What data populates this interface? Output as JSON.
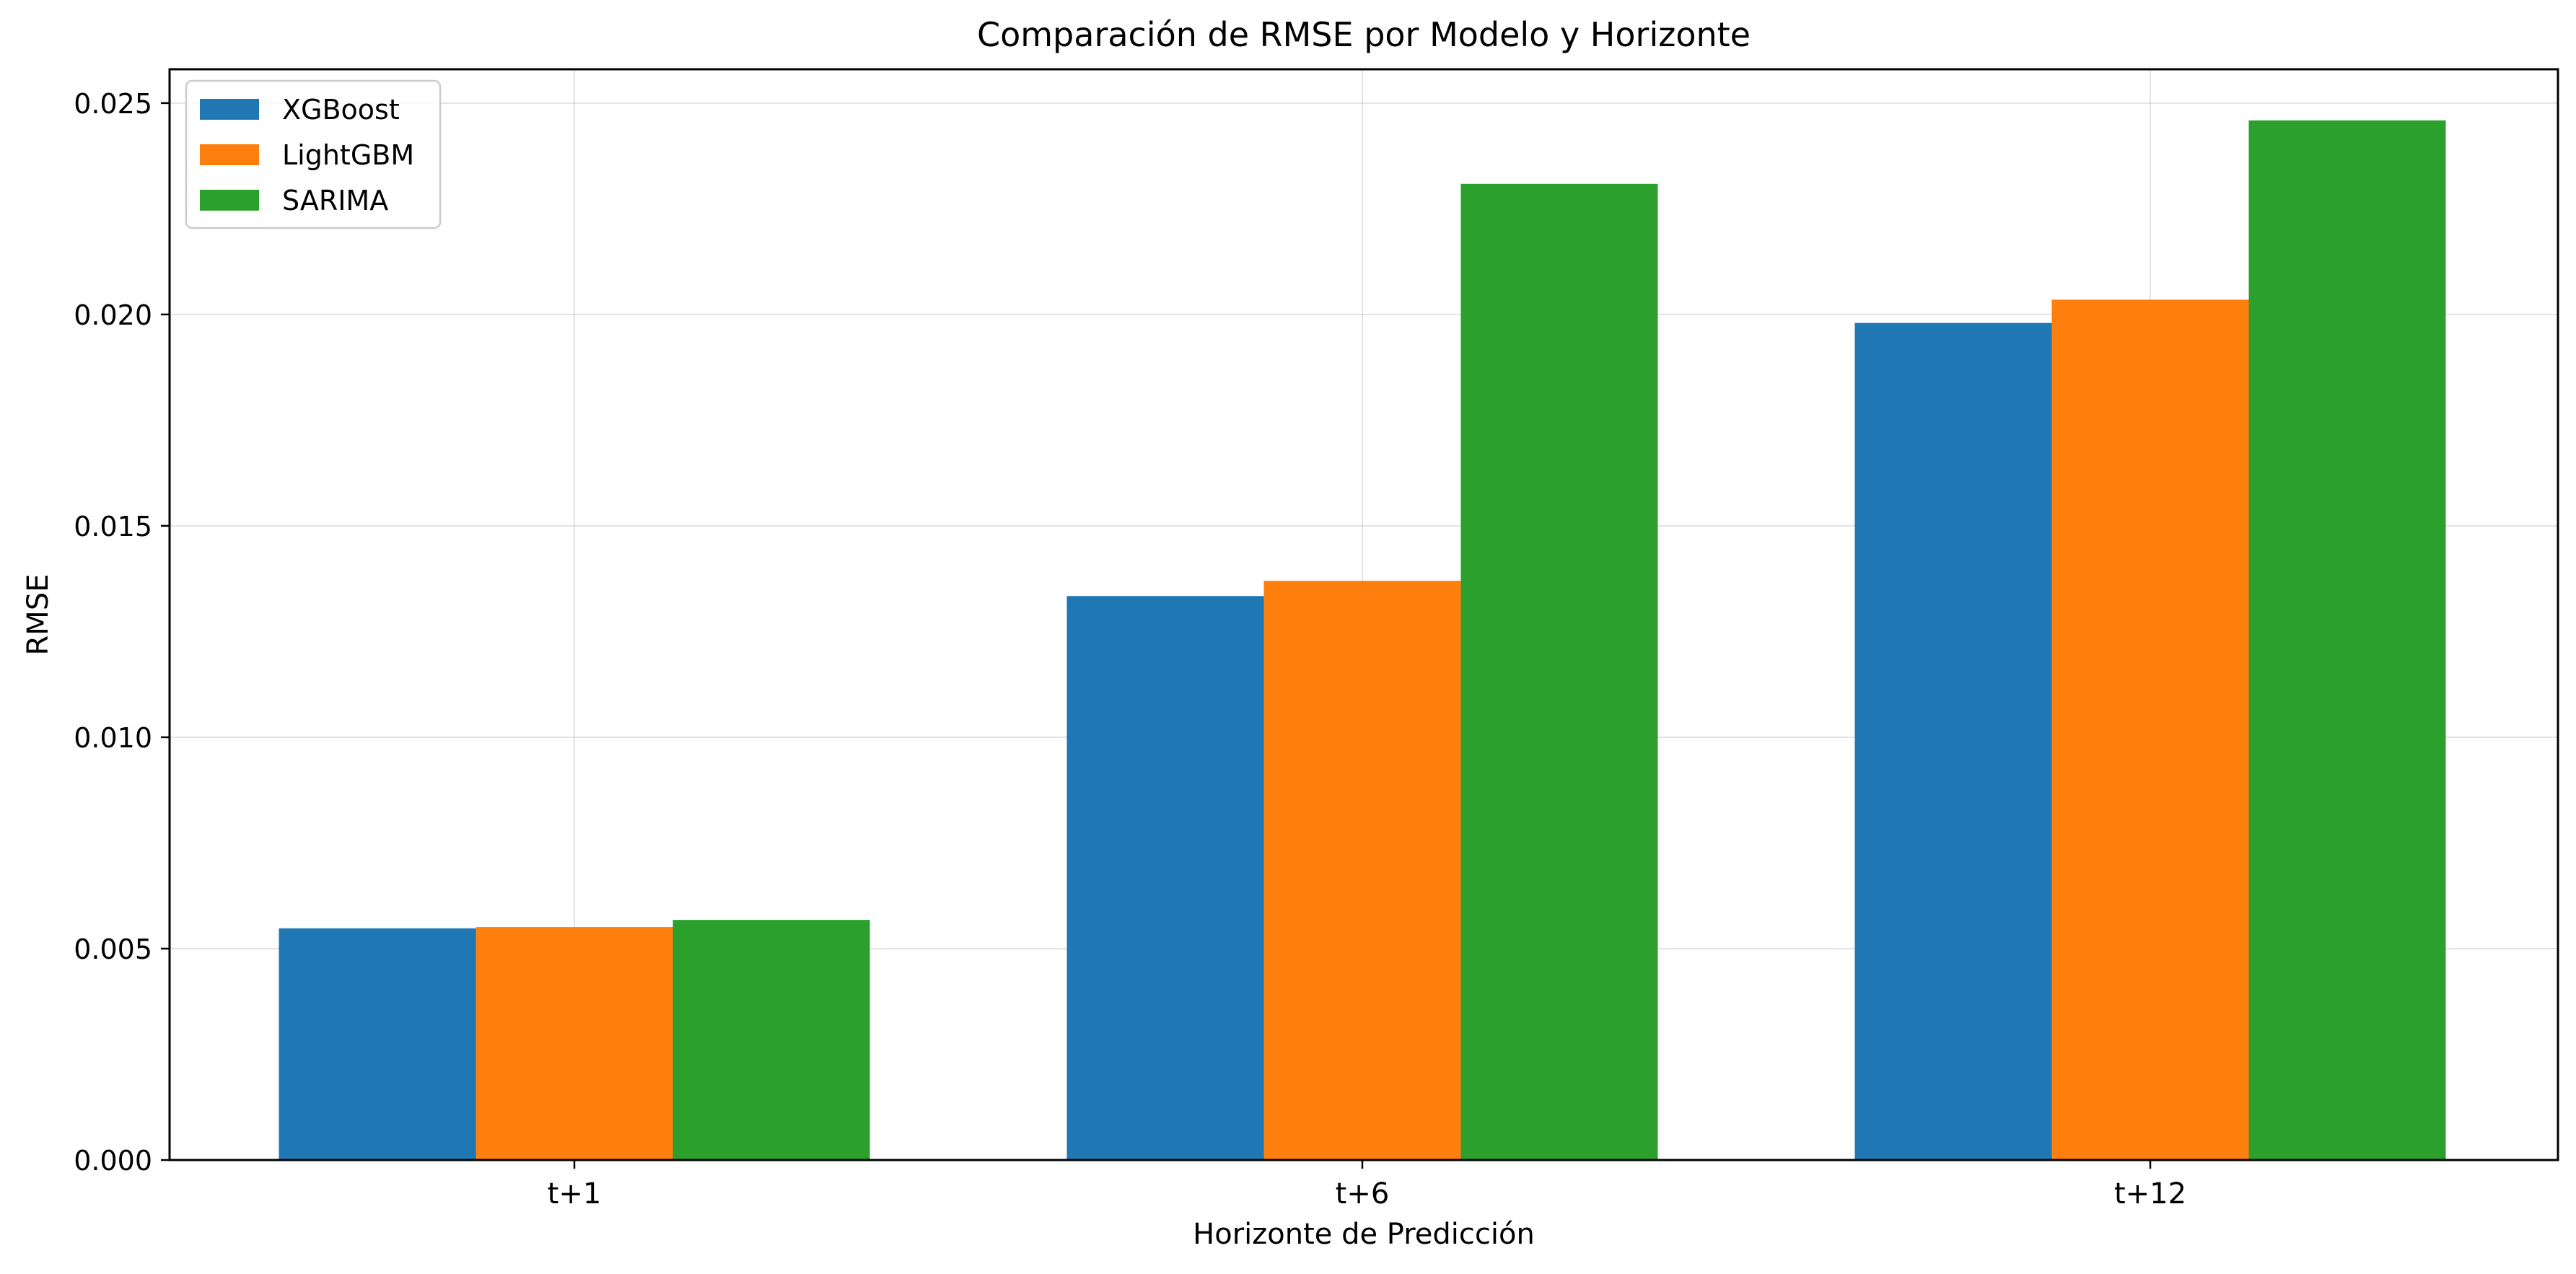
{
  "chart_data": {
    "type": "bar",
    "title": "Comparación de RMSE por Modelo y Horizonte",
    "xlabel": "Horizonte de Predicción",
    "ylabel": "RMSE",
    "categories": [
      "t+1",
      "t+6",
      "t+12"
    ],
    "series": [
      {
        "name": "XGBoost",
        "color": "#1f77b4",
        "values": [
          0.00548,
          0.01334,
          0.0198
        ]
      },
      {
        "name": "LightGBM",
        "color": "#ff7f0e",
        "values": [
          0.00551,
          0.0137,
          0.02035
        ]
      },
      {
        "name": "SARIMA",
        "color": "#2ca02c",
        "values": [
          0.00568,
          0.02309,
          0.02459
        ]
      }
    ],
    "ylim": [
      0,
      0.0258
    ],
    "yticks": [
      "0.000",
      "0.005",
      "0.010",
      "0.015",
      "0.020",
      "0.025"
    ],
    "grid": true,
    "legend_position": "top-left"
  }
}
